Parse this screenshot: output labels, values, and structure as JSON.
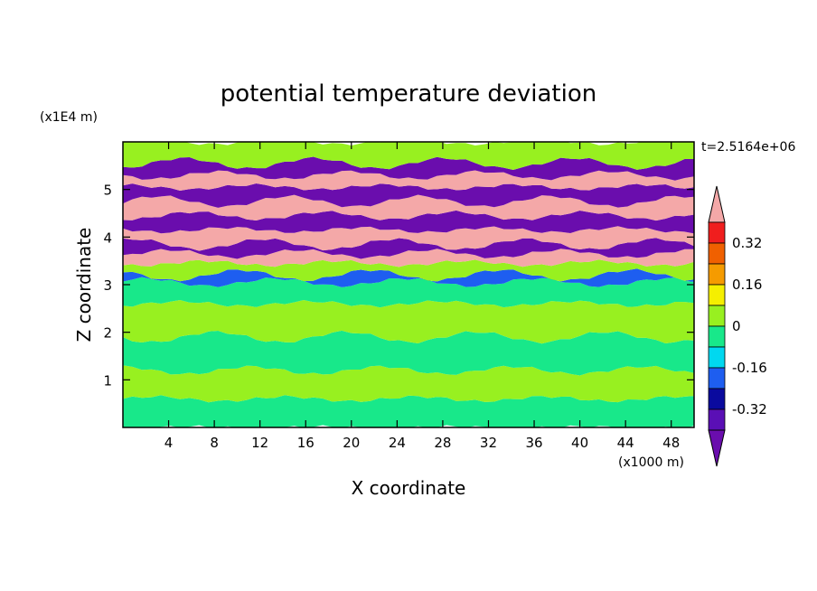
{
  "chart_data": {
    "type": "heatmap",
    "title": "potential temperature deviation",
    "xlabel": "X coordinate",
    "ylabel": "Z coordinate",
    "x_unit": "(x1000 m)",
    "y_unit": "(x1E4 m)",
    "time_label": "t=2.5164e+06",
    "xlim": [
      0,
      50
    ],
    "ylim": [
      0,
      6
    ],
    "x_ticks": [
      4,
      8,
      12,
      16,
      20,
      24,
      28,
      32,
      36,
      40,
      44,
      48
    ],
    "y_ticks": [
      1,
      2,
      3,
      4,
      5
    ],
    "colorbar": {
      "ticks": [
        "0.32",
        "0.16",
        "0",
        "-0.16",
        "-0.32"
      ],
      "levels": [
        {
          "range": "< -0.40",
          "color": "#6a0dad"
        },
        {
          "range": "-0.40 to -0.32",
          "color": "#5a0fb5"
        },
        {
          "range": "-0.32 to -0.24",
          "color": "#0a0a9e"
        },
        {
          "range": "-0.24 to -0.16",
          "color": "#1e5ef0"
        },
        {
          "range": "-0.16 to -0.08",
          "color": "#00d8f0"
        },
        {
          "range": "-0.08 to 0",
          "color": "#18e88a"
        },
        {
          "range": "0 to 0.08",
          "color": "#98f020"
        },
        {
          "range": "0.08 to 0.16",
          "color": "#f5ef00"
        },
        {
          "range": "0.16 to 0.24",
          "color": "#f59b00"
        },
        {
          "range": "0.24 to 0.32",
          "color": "#f06000"
        },
        {
          "range": "0.32 to 0.40",
          "color": "#f01e1e"
        },
        {
          "range": "> 0.40",
          "color": "#f4a8a8"
        }
      ]
    },
    "bands": [
      {
        "z": [
          0.0,
          0.6
        ],
        "level": "-0.08 to 0"
      },
      {
        "z": [
          0.6,
          1.2
        ],
        "level": "0 to 0.08"
      },
      {
        "z": [
          1.2,
          1.9
        ],
        "level": "-0.08 to 0"
      },
      {
        "z": [
          1.9,
          2.6
        ],
        "level": "0 to 0.08"
      },
      {
        "z": [
          2.6,
          3.05
        ],
        "level": "-0.08 to 0"
      },
      {
        "z": [
          3.05,
          3.2
        ],
        "level": "-0.24 to -0.16"
      },
      {
        "z": [
          3.2,
          3.45
        ],
        "level": "0 to 0.08"
      },
      {
        "z": [
          3.45,
          3.65
        ],
        "level": "> 0.40"
      },
      {
        "z": [
          3.65,
          3.85
        ],
        "level": "< -0.40"
      },
      {
        "z": [
          3.85,
          4.15
        ],
        "level": "> 0.40"
      },
      {
        "z": [
          4.15,
          4.45
        ],
        "level": "< -0.40"
      },
      {
        "z": [
          4.45,
          4.75
        ],
        "level": "> 0.40"
      },
      {
        "z": [
          4.75,
          5.05
        ],
        "level": "< -0.40"
      },
      {
        "z": [
          5.05,
          5.3
        ],
        "level": "> 0.40"
      },
      {
        "z": [
          5.3,
          5.55
        ],
        "level": "< -0.40"
      },
      {
        "z": [
          5.55,
          6.0
        ],
        "level": "0 to 0.08"
      }
    ]
  }
}
